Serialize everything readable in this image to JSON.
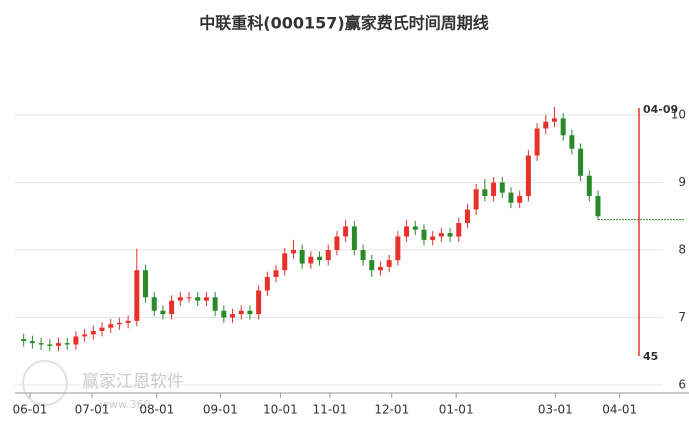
{
  "chart_data": {
    "type": "candlestick",
    "title": "中联重科(000157)赢家费氏时间周期线",
    "watermark": "赢家江恩软件",
    "watermark_url": "www.360",
    "up_color": "#e8312b",
    "down_color": "#2a8a2a",
    "open": [
      6.68,
      6.65,
      6.62,
      6.6,
      6.58,
      6.62,
      6.6,
      6.72,
      6.75,
      6.8,
      6.85,
      6.9,
      6.92,
      6.95,
      7.7,
      7.3,
      7.1,
      7.05,
      7.25,
      7.3,
      7.3,
      7.25,
      7.3,
      7.1,
      7.0,
      7.05,
      7.1,
      7.05,
      7.4,
      7.6,
      7.7,
      7.95,
      8.0,
      7.8,
      7.9,
      7.85,
      8.0,
      8.2,
      8.35,
      8.0,
      7.85,
      7.7,
      7.75,
      7.85,
      8.2,
      8.35,
      8.3,
      8.15,
      8.2,
      8.25,
      8.2,
      8.4,
      8.6,
      8.9,
      8.8,
      9.0,
      8.85,
      8.7,
      8.8,
      9.4,
      9.8,
      9.9,
      9.95,
      9.7,
      9.5,
      9.1,
      8.8
    ],
    "high": [
      6.76,
      6.73,
      6.7,
      6.68,
      6.7,
      6.7,
      6.8,
      6.83,
      6.88,
      6.93,
      6.98,
      7.0,
      7.03,
      8.02,
      7.78,
      7.38,
      7.18,
      7.33,
      7.38,
      7.38,
      7.38,
      7.38,
      7.38,
      7.18,
      7.13,
      7.18,
      7.18,
      7.48,
      7.68,
      7.78,
      8.03,
      8.15,
      8.08,
      7.98,
      7.98,
      8.08,
      8.28,
      8.45,
      8.43,
      8.08,
      7.93,
      7.83,
      7.93,
      8.28,
      8.45,
      8.43,
      8.38,
      8.28,
      8.33,
      8.33,
      8.48,
      8.68,
      8.98,
      9.05,
      9.08,
      9.08,
      8.93,
      8.88,
      9.48,
      9.88,
      10.0,
      10.12,
      10.03,
      9.78,
      9.58,
      9.18,
      8.88
    ],
    "low": [
      6.57,
      6.54,
      6.52,
      6.5,
      6.5,
      6.52,
      6.52,
      6.64,
      6.67,
      6.72,
      6.77,
      6.82,
      6.84,
      6.87,
      7.22,
      7.02,
      6.97,
      6.97,
      7.17,
      7.22,
      7.17,
      7.17,
      7.02,
      6.92,
      6.92,
      6.97,
      6.97,
      6.97,
      7.32,
      7.52,
      7.62,
      7.87,
      7.72,
      7.72,
      7.77,
      7.77,
      7.92,
      8.12,
      7.92,
      7.77,
      7.6,
      7.62,
      7.67,
      7.77,
      8.12,
      8.22,
      8.07,
      8.07,
      8.12,
      8.12,
      8.12,
      8.32,
      8.52,
      8.72,
      8.72,
      8.77,
      8.62,
      8.62,
      8.72,
      9.32,
      9.72,
      9.82,
      9.62,
      9.42,
      9.02,
      8.72,
      8.45
    ],
    "close": [
      6.65,
      6.62,
      6.6,
      6.58,
      6.62,
      6.6,
      6.72,
      6.75,
      6.8,
      6.85,
      6.9,
      6.92,
      6.95,
      7.7,
      7.3,
      7.1,
      7.05,
      7.25,
      7.3,
      7.3,
      7.25,
      7.3,
      7.1,
      7.0,
      7.05,
      7.1,
      7.05,
      7.4,
      7.6,
      7.7,
      7.95,
      8.0,
      7.8,
      7.9,
      7.85,
      8.0,
      8.2,
      8.35,
      8.0,
      7.85,
      7.7,
      7.75,
      7.85,
      8.2,
      8.35,
      8.3,
      8.15,
      8.2,
      8.25,
      8.2,
      8.4,
      8.6,
      8.9,
      8.8,
      9.0,
      8.85,
      8.7,
      8.8,
      9.4,
      9.8,
      9.9,
      9.95,
      9.7,
      9.5,
      9.1,
      8.8,
      8.5
    ],
    "level": 8.45,
    "level_color": "#2a8a2a",
    "marker": {
      "label": "04-09",
      "count": "45",
      "color": "#e8312b"
    },
    "xlim": [
      -1,
      76
    ],
    "xticks": [
      {
        "value": 0.72,
        "label": "06-01"
      },
      {
        "value": 7.85,
        "label": "07-01"
      },
      {
        "value": 15.3,
        "label": "08-01"
      },
      {
        "value": 22.6,
        "label": "09-01"
      },
      {
        "value": 29.5,
        "label": "10-01"
      },
      {
        "value": 35.2,
        "label": "11-01"
      },
      {
        "value": 42.3,
        "label": "12-01"
      },
      {
        "value": 49.7,
        "label": "01-01"
      },
      {
        "value": 61.1,
        "label": "03-01"
      },
      {
        "value": 68.5,
        "label": "04-01"
      }
    ],
    "ylim": [
      6,
      10.4
    ],
    "yticks": [
      6,
      7,
      8,
      9,
      10
    ],
    "grid": true
  }
}
